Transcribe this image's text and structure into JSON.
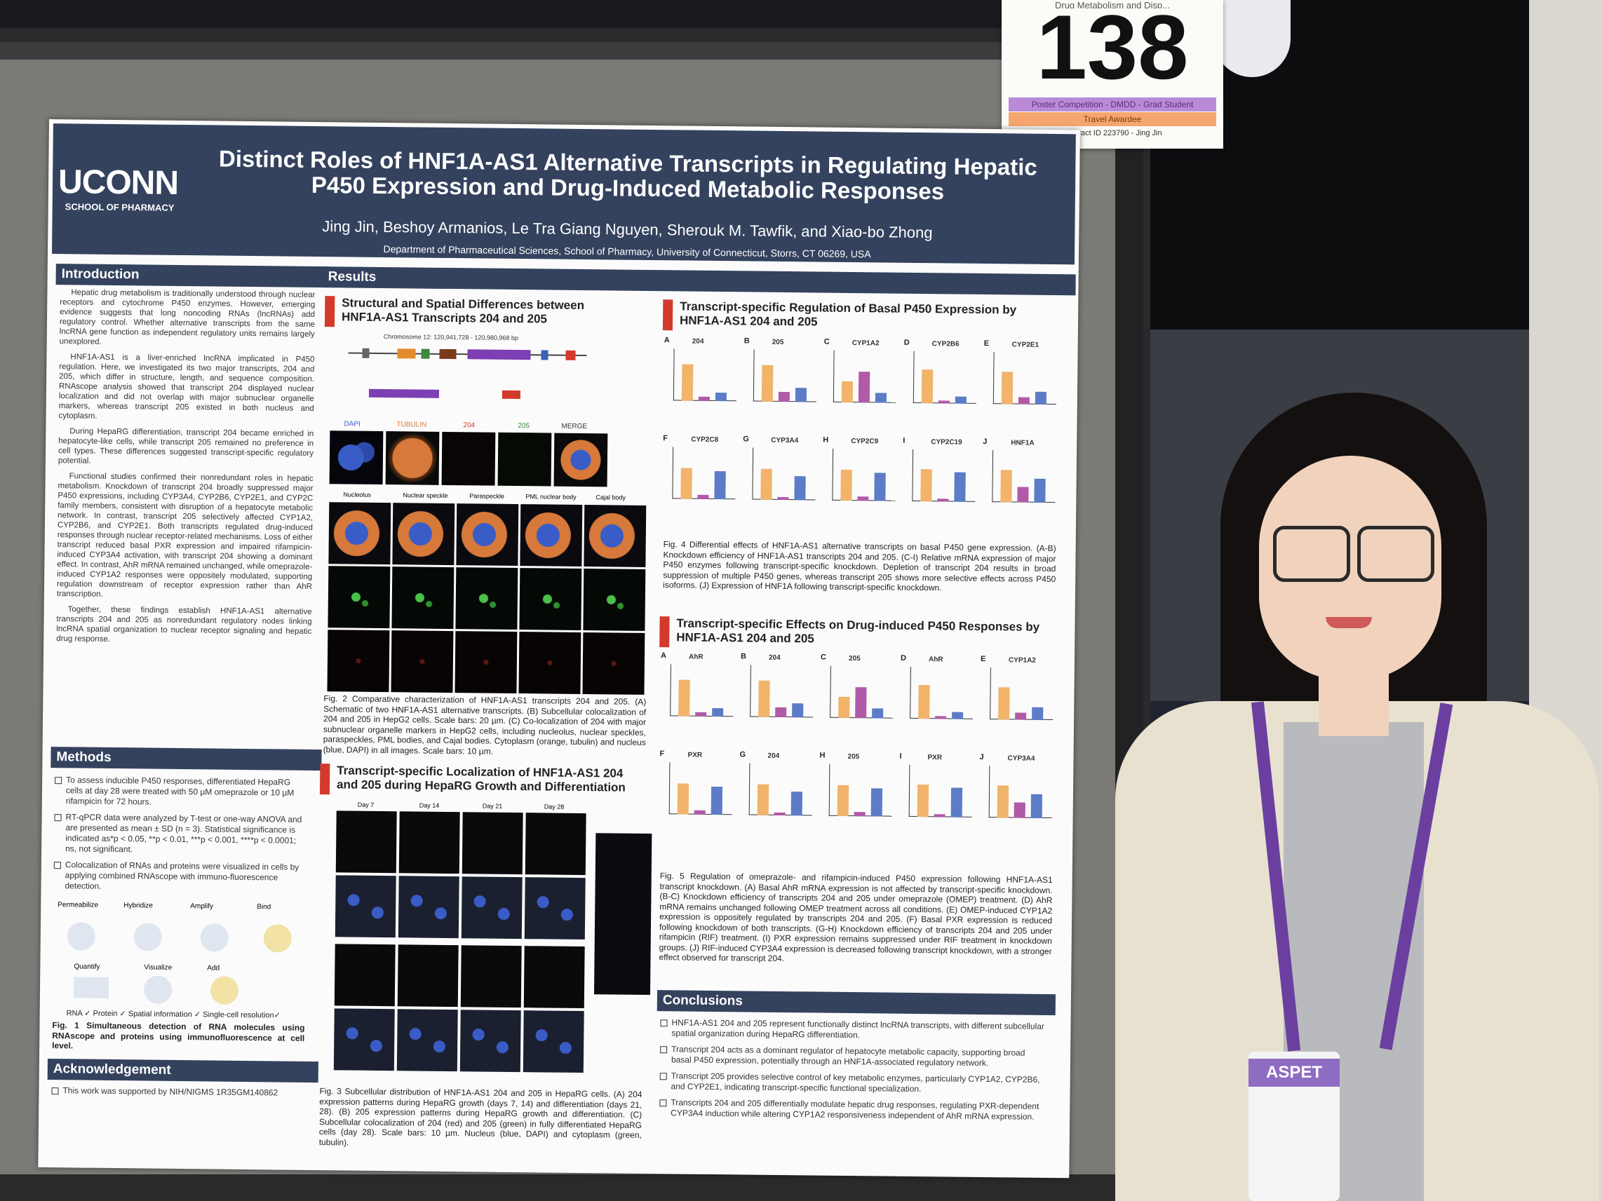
{
  "booth": {
    "card_top_text": "Drug Metabolism and Disp...",
    "number": "138",
    "band1": "Poster Competition - DMDD - Grad Student",
    "band2": "Travel Awardee",
    "abstract": "Abstract ID 223790 - Jing Jin"
  },
  "poster": {
    "logo": "UCONN",
    "logo_sub": "SCHOOL OF PHARMACY",
    "title": "Distinct Roles of HNF1A-AS1 Alternative Transcripts in Regulating Hepatic P450 Expression and Drug-Induced Metabolic Responses",
    "authors": "Jing Jin, Beshoy Armanios, Le Tra Giang Nguyen, Sherouk M. Tawfik, and Xiao-bo Zhong",
    "affiliation": "Department of Pharmaceutical Sciences, School of Pharmacy, University of Connecticut, Storrs, CT 06269, USA",
    "introduction": {
      "heading": "Introduction",
      "paragraphs": [
        "Hepatic drug metabolism is traditionally understood through nuclear receptors and cytochrome P450 enzymes. However, emerging evidence suggests that long noncoding RNAs (lncRNAs) add regulatory control. Whether alternative transcripts from the same lncRNA gene function as independent regulatory units remains largely unexplored.",
        "HNF1A-AS1 is a liver-enriched lncRNA implicated in P450 regulation. Here, we investigated its two major transcripts, 204 and 205, which differ in structure, length, and sequence composition. RNAscope analysis showed that transcript 204 displayed nuclear localization and did not overlap with major subnuclear organelle markers, whereas transcript 205 existed in both nucleus and cytoplasm.",
        "During HepaRG differentiation, transcript 204 became enriched in hepatocyte-like cells, while transcript 205 remained no preference in cell types. These differences suggested transcript-specific regulatory potential.",
        "Functional studies confirmed their nonredundant roles in hepatic metabolism. Knockdown of transcript 204 broadly suppressed major P450 expressions, including CYP3A4, CYP2B6, CYP2E1, and CYP2C family members, consistent with disruption of a hepatocyte metabolic network. In contrast, transcript 205 selectively affected CYP1A2, CYP2B6, and CYP2E1. Both transcripts regulated drug-induced responses through nuclear receptor-related mechanisms. Loss of either transcript reduced basal PXR expression and impaired rifampicin-induced CYP3A4 activation, with transcript 204 showing a dominant effect. In contrast, AhR mRNA remained unchanged, while omeprazole-induced CYP1A2 responses were oppositely modulated, supporting regulation downstream of receptor expression rather than AhR transcription.",
        "Together, these findings establish HNF1A-AS1 alternative transcripts 204 and 205 as nonredundant regulatory nodes linking lncRNA spatial organization to nuclear receptor signaling and hepatic drug response."
      ]
    },
    "methods": {
      "heading": "Methods",
      "items": [
        "To assess inducible P450 responses, differentiated HepaRG cells at day 28 were treated with 50 µM omeprazole or 10 µM rifampicin for 72 hours.",
        "RT-qPCR data were analyzed by T-test or one-way ANOVA and are presented as mean ± SD (n = 3). Statistical significance is indicated as*p < 0.05, **p < 0.01, ***p < 0.001, ****p < 0.0001; ns, not significant.",
        "Colocalization of RNAs and proteins were visualized in cells by applying combined RNAscope with immuno-fluorescence detection."
      ],
      "workflow_steps": [
        "Permeabilize",
        "Hybridize",
        "Amplify",
        "Bind",
        "Add",
        "Visualize",
        "Quantify"
      ],
      "workflow_footer": "RNA ✓ Protein ✓ Spatial information ✓ Single-cell resolution✓",
      "fig1_caption": "Fig. 1 Simultaneous detection of RNA molecules using RNAscope and proteins using immunofluorescence at cell level."
    },
    "acknowledgement": {
      "heading": "Acknowledgement",
      "text": "This work was supported by NIH/NIGMS 1R35GM140862"
    },
    "results": {
      "heading": "Results",
      "sub1": "Structural and Spatial Differences between HNF1A-AS1 Transcripts 204 and 205",
      "fig2_channels": [
        "DAPI",
        "TUBULIN",
        "204",
        "205",
        "MERGE"
      ],
      "fig2_organelles": [
        "Nucleolus",
        "Nuclear speckle",
        "Paraspeckle",
        "PML nuclear body",
        "Cajal body"
      ],
      "chromosome": "Chromosome 12: 120,941,728 - 120,980,968 bp",
      "fig2_caption": "Fig. 2 Comparative characterization of HNF1A-AS1 transcripts 204 and 205. (A) Schematic of two HNF1A-AS1 alternative transcripts. (B) Subcellular colocalization of 204 and 205 in HepG2 cells. Scale bars: 20 µm. (C) Co-localization of 204 with major subnuclear organelle markers in HepG2 cells, including nucleolus, nuclear speckles, paraspeckles, PML bodies, and Cajal bodies. Cytoplasm (orange, tubulin) and nucleus (blue, DAPI) in all images. Scale bars: 10 µm.",
      "sub2": "Transcript-specific Localization of HNF1A-AS1 204 and 205 during HepaRG Growth and Differentiation",
      "fig3_days": [
        "Day 7",
        "Day 14",
        "Day 21",
        "Day 28"
      ],
      "fig3_caption": "Fig. 3 Subcellular distribution of HNF1A-AS1 204 and 205 in HepaRG cells. (A) 204 expression patterns during HepaRG growth (days 7, 14) and differentiation (days 21, 28). (B) 205 expression patterns during HepaRG growth and differentiation. (C) Subcellular colocalization of 204 (red) and 205 (green) in fully differentiated HepaRG cells (day 28). Scale bars: 10 µm. Nucleus (blue, DAPI) and cytoplasm (green, tubulin).",
      "sub3": "Transcript-specific Regulation of Basal P450 Expression by HNF1A-AS1 204 and 205",
      "fig4_panels": [
        "204",
        "205",
        "CYP1A2",
        "CYP2B6",
        "CYP2E1",
        "CYP2C8",
        "CYP3A4",
        "CYP2C9",
        "CYP2C19",
        "HNF1A"
      ],
      "fig4_caption": "Fig. 4 Differential effects of HNF1A-AS1 alternative transcripts on basal P450 gene expression. (A-B) Knockdown efficiency of HNF1A-AS1 transcripts 204 and 205. (C-I) Relative mRNA expression of major P450 enzymes following transcript-specific knockdown. Depletion of transcript 204 results in broad suppression of multiple P450 genes, whereas transcript 205 shows more selective effects across P450 isoforms. (J) Expression of HNF1A following transcript-specific knockdown.",
      "sub4": "Transcript-specific Effects on Drug-induced P450 Responses by HNF1A-AS1 204 and 205",
      "fig5_panels": [
        "AhR",
        "204",
        "205",
        "AhR",
        "CYP1A2",
        "PXR",
        "204",
        "205",
        "PXR",
        "CYP3A4"
      ],
      "fig5_caption": "Fig. 5 Regulation of omeprazole- and rifampicin-induced P450 expression following HNF1A-AS1 transcript knockdown. (A) Basal AhR mRNA expression is not affected by transcript-specific knockdown. (B-C) Knockdown efficiency of transcripts 204 and 205 under omeprazole (OMEP) treatment. (D) AhR mRNA remains unchanged following OMEP treatment across all conditions. (E) OMEP-induced CYP1A2 expression is oppositely regulated by transcripts 204 and 205. (F) Basal PXR expression is reduced following knockdown of both transcripts. (G-H) Knockdown efficiency of transcripts 204 and 205 under rifampicin (RIF) treatment. (I) PXR expression remains suppressed under RIF treatment in knockdown groups. (J) RIF-induced CYP3A4 expression is decreased following transcript knockdown, with a stronger effect observed for transcript 204."
    },
    "conclusions": {
      "heading": "Conclusions",
      "items": [
        "HNF1A-AS1 204 and 205 represent functionally distinct lncRNA transcripts, with different subcellular spatial organization during HepaRG differentiation.",
        "Transcript 204 acts as a dominant regulator of hepatocyte metabolic capacity, supporting broad basal P450 expression, potentially through an HNF1A-associated regulatory network.",
        "Transcript 205 provides selective control of key metabolic enzymes, particularly CYP1A2, CYP2B6, and CYP2E1, indicating transcript-specific functional specialization.",
        "Transcripts 204 and 205 differentially modulate hepatic drug responses, regulating PXR-dependent CYP3A4 induction while altering CYP1A2 responsiveness independent of AhR mRNA expression."
      ]
    }
  },
  "badge": {
    "brand": "ASPET"
  },
  "colors": {
    "header": "#34425e",
    "accent_red": "#d33a2c",
    "bar_control": "#f2b36b",
    "bar_204": "#b15aa8",
    "bar_205": "#5c7cc8",
    "lanyard": "#6b3fa0"
  }
}
